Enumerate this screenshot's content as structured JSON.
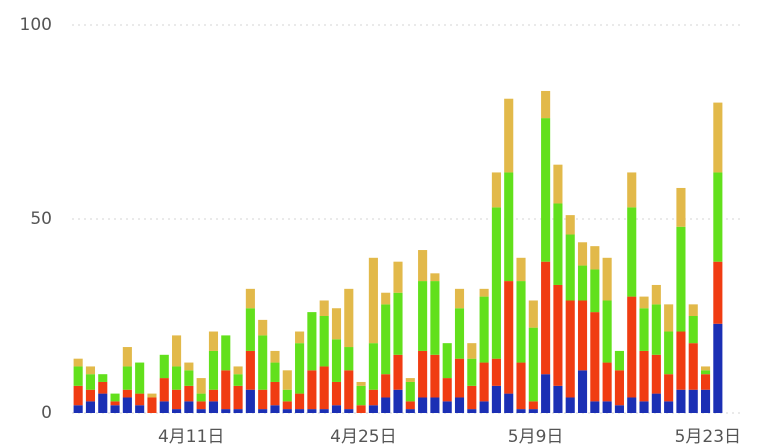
{
  "chart_data": {
    "type": "stacked-bar",
    "categories": [
      null,
      null,
      null,
      null,
      null,
      null,
      null,
      null,
      null,
      null,
      "4月11日",
      null,
      null,
      null,
      null,
      null,
      null,
      null,
      null,
      null,
      null,
      null,
      null,
      null,
      "4月25日",
      null,
      null,
      null,
      null,
      null,
      null,
      null,
      null,
      null,
      null,
      null,
      null,
      null,
      "5月9日",
      null,
      null,
      null,
      null,
      null,
      null,
      null,
      null,
      null,
      null,
      null,
      null,
      null,
      "5月23日"
    ],
    "series": [
      {
        "color": "#1b2fb4",
        "values": [
          2,
          3,
          5,
          2,
          4,
          2,
          0,
          3,
          1,
          3,
          1,
          3,
          1,
          1,
          6,
          1,
          2,
          1,
          1,
          1,
          1,
          2,
          1,
          0,
          2,
          4,
          6,
          1,
          4,
          4,
          3,
          4,
          1,
          3,
          7,
          5,
          1,
          1,
          10,
          7,
          4,
          11,
          3,
          3,
          2,
          4,
          3,
          5,
          3,
          6,
          6,
          6,
          23
        ]
      },
      {
        "color": "#f03c12",
        "values": [
          5,
          3,
          3,
          1,
          2,
          3,
          4,
          6,
          5,
          4,
          2,
          3,
          10,
          6,
          10,
          5,
          6,
          2,
          4,
          10,
          11,
          6,
          10,
          2,
          4,
          6,
          9,
          2,
          12,
          11,
          6,
          10,
          6,
          10,
          7,
          29,
          12,
          2,
          29,
          26,
          25,
          18,
          23,
          10,
          9,
          26,
          13,
          10,
          7,
          15,
          12,
          4,
          16
        ]
      },
      {
        "color": "#62e01c",
        "values": [
          5,
          4,
          2,
          2,
          6,
          8,
          0,
          6,
          6,
          4,
          2,
          10,
          9,
          3,
          11,
          14,
          5,
          3,
          13,
          15,
          13,
          11,
          6,
          5,
          12,
          18,
          16,
          5,
          18,
          19,
          9,
          13,
          7,
          17,
          39,
          28,
          21,
          19,
          37,
          21,
          17,
          9,
          11,
          16,
          5,
          23,
          11,
          13,
          11,
          27,
          7,
          1,
          23
        ]
      },
      {
        "color": "#e2b94a",
        "values": [
          2,
          2,
          0,
          0,
          5,
          0,
          1,
          0,
          8,
          2,
          4,
          5,
          0,
          2,
          5,
          4,
          3,
          5,
          3,
          0,
          4,
          8,
          15,
          1,
          22,
          3,
          8,
          1,
          8,
          2,
          0,
          5,
          4,
          2,
          9,
          19,
          6,
          7,
          7,
          10,
          5,
          6,
          6,
          11,
          0,
          9,
          3,
          5,
          7,
          10,
          3,
          1,
          18
        ]
      }
    ],
    "ylim": [
      0,
      100
    ],
    "yticks": [
      0,
      50,
      100
    ],
    "grid": true
  }
}
